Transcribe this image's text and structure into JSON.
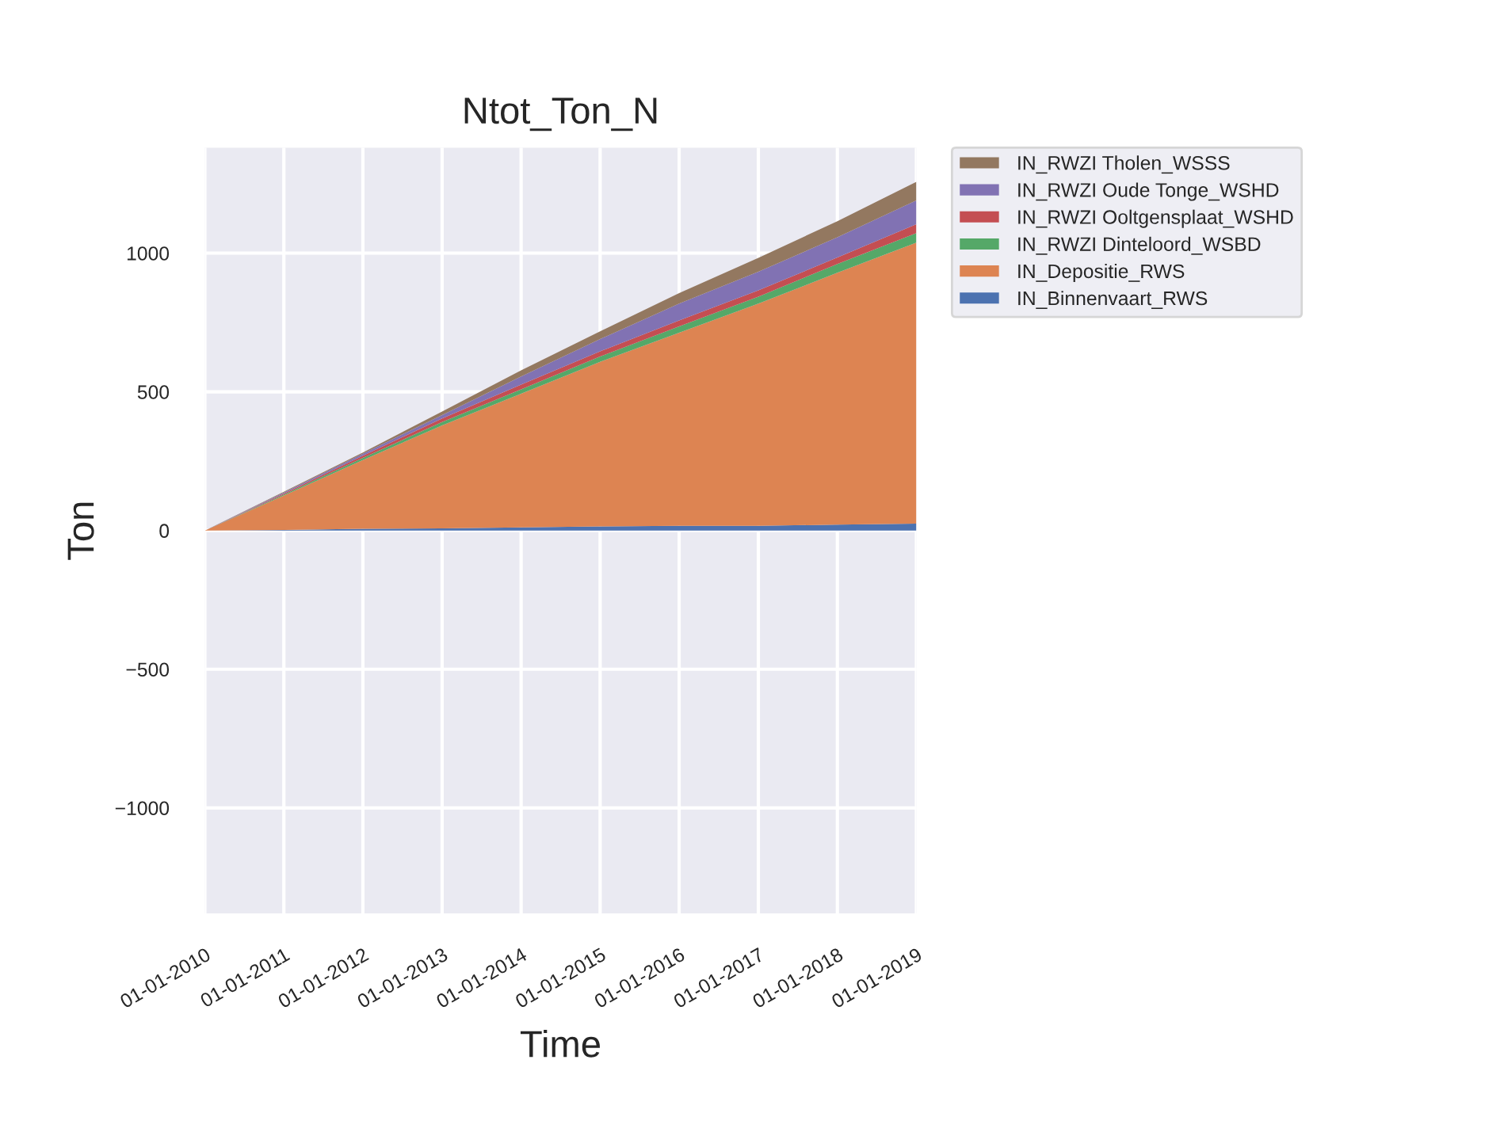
{
  "chart_data": {
    "type": "area",
    "stacked": true,
    "title": "Ntot_Ton_N",
    "xlabel": "Time",
    "ylabel": "Ton",
    "x": [
      "2010-01-01",
      "2011-01-01",
      "2012-01-01",
      "2013-01-01",
      "2014-01-01",
      "2015-01-01",
      "2016-01-01",
      "2017-01-01",
      "2018-01-01",
      "2019-01-01"
    ],
    "series": [
      {
        "name": "IN_Binnenvaart_RWS",
        "color": "#4c72b0",
        "values": [
          0,
          2,
          6,
          8,
          11,
          15,
          17,
          17,
          21,
          25
        ]
      },
      {
        "name": "IN_Depositie_RWS",
        "color": "#dd8452",
        "values": [
          0,
          124,
          248,
          371,
          482,
          593,
          696,
          801,
          908,
          1013
        ]
      },
      {
        "name": "IN_RWZI Dinteloord_WSBD",
        "color": "#55a868",
        "values": [
          0,
          4,
          8,
          12,
          16,
          19,
          23,
          25,
          32,
          34
        ]
      },
      {
        "name": "IN_RWZI Ooltgensplaat_WSHD",
        "color": "#c44e52",
        "values": [
          0,
          3,
          8,
          13,
          17,
          19,
          21,
          23,
          23,
          32
        ]
      },
      {
        "name": "IN_RWZI Oude Tonge_WSHD",
        "color": "#8172b3",
        "values": [
          0,
          4,
          7,
          12,
          29,
          44,
          61,
          67,
          73,
          86
        ]
      },
      {
        "name": "IN_RWZI Tholen_WSSS",
        "color": "#937860",
        "values": [
          0,
          3,
          4,
          13,
          22,
          28,
          38,
          50,
          58,
          67
        ]
      }
    ],
    "xlim": [
      "2010-01-01",
      "2019-01-01"
    ],
    "xticks": [
      {
        "value": "2010-01-01",
        "label": "01-01-2010"
      },
      {
        "value": "2011-01-01",
        "label": "01-01-2011"
      },
      {
        "value": "2012-01-01",
        "label": "01-01-2012"
      },
      {
        "value": "2013-01-01",
        "label": "01-01-2013"
      },
      {
        "value": "2014-01-01",
        "label": "01-01-2014"
      },
      {
        "value": "2015-01-01",
        "label": "01-01-2015"
      },
      {
        "value": "2016-01-01",
        "label": "01-01-2016"
      },
      {
        "value": "2017-01-01",
        "label": "01-01-2017"
      },
      {
        "value": "2018-01-01",
        "label": "01-01-2018"
      },
      {
        "value": "2019-01-01",
        "label": "01-01-2019"
      }
    ],
    "ylim": [
      -1380,
      1380
    ],
    "yticks": [
      {
        "value": -1000,
        "label": "−1000"
      },
      {
        "value": -500,
        "label": "−500"
      },
      0,
      500,
      1000
    ],
    "grid": true,
    "legend": "top right"
  }
}
